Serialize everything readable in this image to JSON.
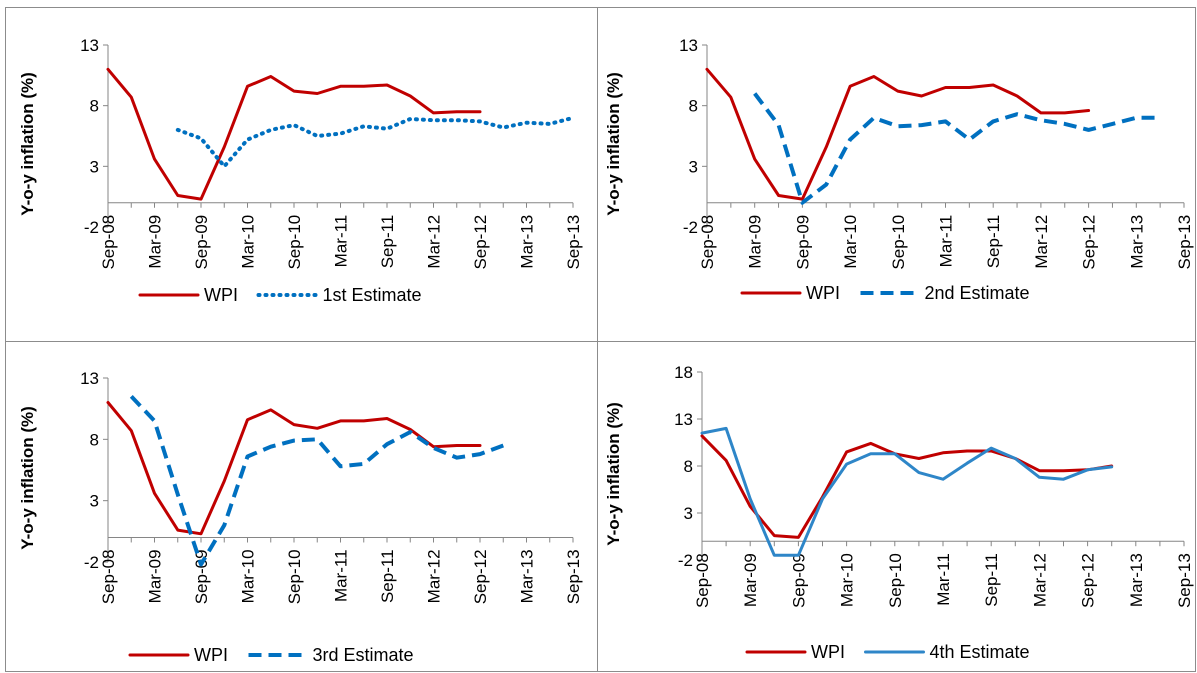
{
  "chart_data": [
    {
      "type": "line",
      "ylabel": "Y-o-y inflation (%)",
      "ylim": [
        -2,
        13
      ],
      "yticks": [
        -2,
        3,
        8,
        13
      ],
      "x_categories": [
        "Sep-08",
        "Mar-09",
        "Sep-09",
        "Mar-10",
        "Sep-10",
        "Mar-11",
        "Sep-11",
        "Mar-12",
        "Sep-12",
        "Mar-13",
        "Sep-13"
      ],
      "legend_position": "bottom",
      "series": [
        {
          "name": "WPI",
          "style": "solid",
          "color": "#c00000",
          "x": [
            0,
            1,
            2,
            3,
            4,
            5,
            6,
            7,
            8,
            9,
            10,
            11,
            12,
            13,
            14,
            15,
            16,
            17,
            18,
            19,
            20
          ],
          "y": [
            11.0,
            8.7,
            3.6,
            0.6,
            0.3,
            4.6,
            9.6,
            10.4,
            9.2,
            9.0,
            9.6,
            9.6,
            9.7,
            8.8,
            7.4,
            7.5,
            7.5,
            null,
            null,
            null,
            null
          ]
        },
        {
          "name": "1st Estimate",
          "style": "dotted",
          "color": "#0070c0",
          "x": [
            3,
            4,
            5,
            6,
            7,
            8,
            9,
            10,
            11,
            12,
            13,
            14,
            15,
            16,
            17,
            18,
            19,
            20
          ],
          "y": [
            6.0,
            5.3,
            3.0,
            5.2,
            6.0,
            6.4,
            5.5,
            5.7,
            6.3,
            6.1,
            6.9,
            6.8,
            6.8,
            6.7,
            6.2,
            6.6,
            6.5,
            7.0
          ]
        }
      ]
    },
    {
      "type": "line",
      "ylabel": "Y-o-y inflation (%)",
      "ylim": [
        -2,
        13
      ],
      "yticks": [
        -2,
        3,
        8,
        13
      ],
      "x_categories": [
        "Sep-08",
        "Mar-09",
        "Sep-09",
        "Mar-10",
        "Sep-10",
        "Mar-11",
        "Sep-11",
        "Mar-12",
        "Sep-12",
        "Mar-13",
        "Sep-13"
      ],
      "legend_position": "bottom",
      "series": [
        {
          "name": "WPI",
          "style": "solid",
          "color": "#c00000",
          "x": [
            0,
            1,
            2,
            3,
            4,
            5,
            6,
            7,
            8,
            9,
            10,
            11,
            12,
            13,
            14,
            15,
            16
          ],
          "y": [
            11.0,
            8.7,
            3.6,
            0.6,
            0.3,
            4.6,
            9.6,
            10.4,
            9.2,
            8.8,
            9.5,
            9.5,
            9.7,
            8.8,
            7.4,
            7.4,
            7.6
          ]
        },
        {
          "name": "2nd Estimate",
          "style": "dashed",
          "color": "#0070c0",
          "x": [
            2,
            3,
            4,
            5,
            6,
            7,
            8,
            9,
            10,
            11,
            12,
            13,
            14,
            15,
            16,
            17,
            18,
            19
          ],
          "y": [
            9.0,
            6.4,
            0.0,
            1.5,
            5.2,
            7.0,
            6.3,
            6.4,
            6.7,
            5.2,
            6.7,
            7.3,
            6.8,
            6.5,
            6.0,
            6.5,
            7.0,
            7.0
          ]
        }
      ]
    },
    {
      "type": "line",
      "ylabel": "Y-o-y inflation (%)",
      "ylim": [
        -2,
        13
      ],
      "yticks": [
        -2,
        3,
        8,
        13
      ],
      "x_categories": [
        "Sep-08",
        "Mar-09",
        "Sep-09",
        "Mar-10",
        "Sep-10",
        "Mar-11",
        "Sep-11",
        "Mar-12",
        "Sep-12",
        "Mar-13",
        "Sep-13"
      ],
      "legend_position": "bottom",
      "series": [
        {
          "name": "WPI",
          "style": "solid",
          "color": "#c00000",
          "x": [
            0,
            1,
            2,
            3,
            4,
            5,
            6,
            7,
            8,
            9,
            10,
            11,
            12,
            13,
            14,
            15,
            16
          ],
          "y": [
            11.0,
            8.7,
            3.6,
            0.6,
            0.3,
            4.6,
            9.6,
            10.4,
            9.2,
            8.9,
            9.5,
            9.5,
            9.7,
            8.8,
            7.4,
            7.5,
            7.5
          ]
        },
        {
          "name": "3rd Estimate",
          "style": "dashed",
          "color": "#0070c0",
          "x": [
            1,
            2,
            3,
            4,
            5,
            6,
            7,
            8,
            9,
            10,
            11,
            12,
            13,
            14,
            15,
            16,
            17
          ],
          "y": [
            11.5,
            9.5,
            3.5,
            -2.2,
            1.0,
            6.6,
            7.4,
            7.9,
            8.0,
            5.8,
            6.0,
            7.6,
            8.6,
            7.3,
            6.5,
            6.8,
            7.5
          ]
        }
      ]
    },
    {
      "type": "line",
      "ylabel": "Y-o-y inflation (%)",
      "ylim": [
        -2,
        18
      ],
      "yticks": [
        -2,
        3,
        8,
        13,
        18
      ],
      "x_categories": [
        "Sep-08",
        "Mar-09",
        "Sep-09",
        "Mar-10",
        "Sep-10",
        "Mar-11",
        "Sep-11",
        "Mar-12",
        "Sep-12",
        "Mar-13",
        "Sep-13"
      ],
      "legend_position": "bottom",
      "series": [
        {
          "name": "WPI",
          "style": "solid",
          "color": "#c00000",
          "x": [
            0,
            1,
            2,
            3,
            4,
            5,
            6,
            7,
            8,
            9,
            10,
            11,
            12,
            13,
            14,
            15,
            16,
            17
          ],
          "y": [
            11.2,
            8.6,
            3.7,
            0.6,
            0.4,
            4.7,
            9.5,
            10.4,
            9.3,
            8.8,
            9.4,
            9.6,
            9.6,
            8.8,
            7.5,
            7.5,
            7.6,
            8.0
          ]
        },
        {
          "name": "4th Estimate",
          "style": "solid",
          "color": "#2e86c8",
          "x": [
            0,
            1,
            2,
            3,
            4,
            5,
            6,
            7,
            8,
            9,
            10,
            11,
            12,
            13,
            14,
            15,
            16,
            17
          ],
          "y": [
            11.5,
            12.0,
            4.5,
            -1.5,
            -1.5,
            4.5,
            8.2,
            9.3,
            9.3,
            7.3,
            6.6,
            8.3,
            9.9,
            8.8,
            6.8,
            6.6,
            7.6,
            7.9
          ]
        }
      ]
    }
  ]
}
